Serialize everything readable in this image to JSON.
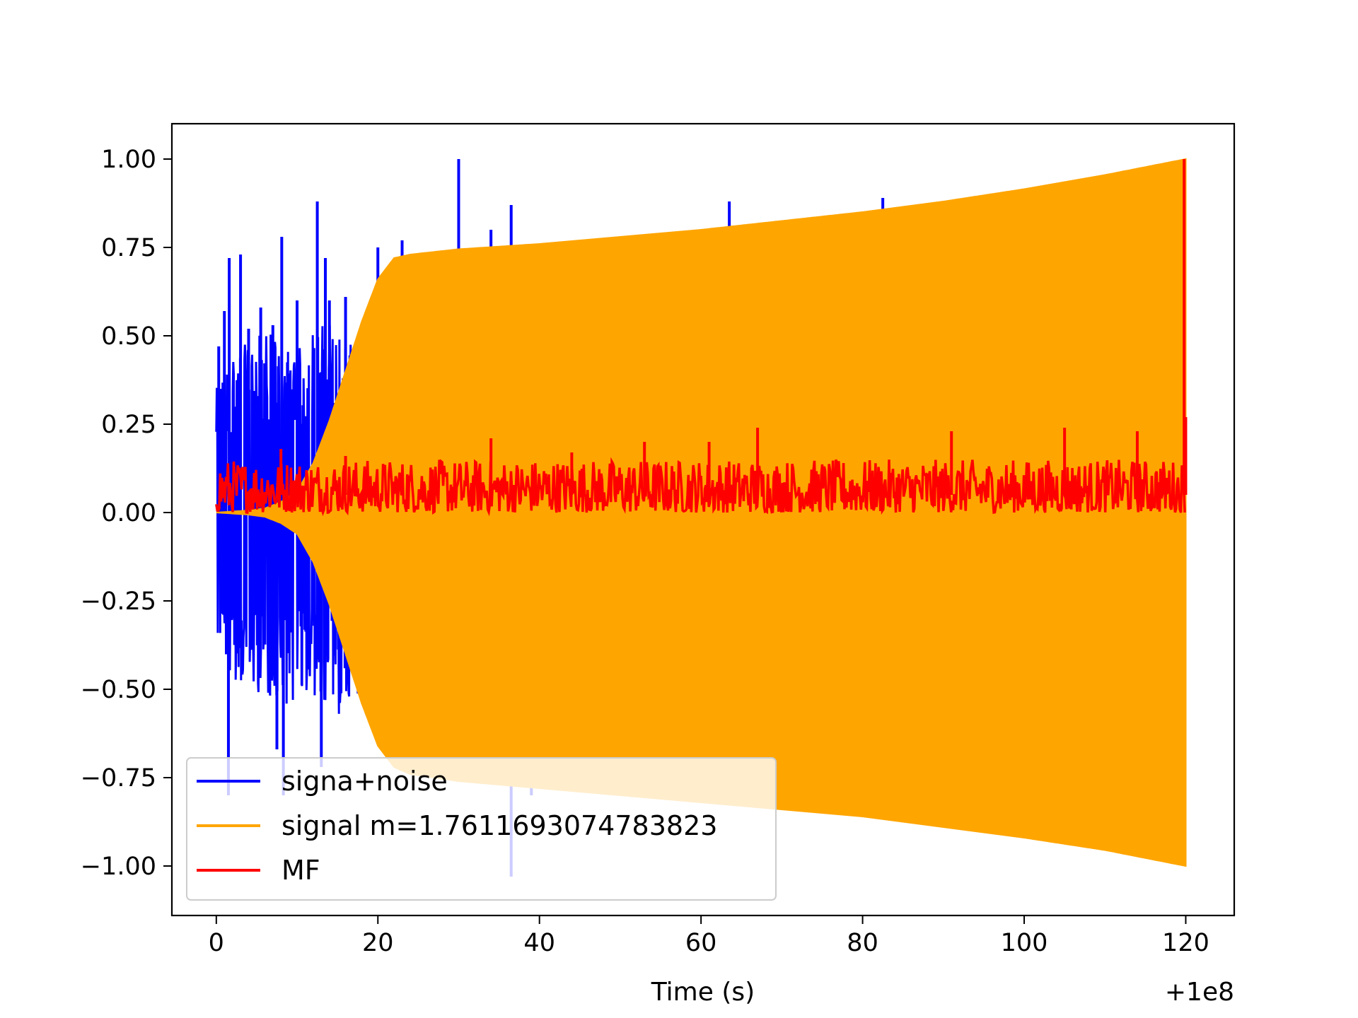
{
  "chart_data": {
    "type": "line",
    "title": "",
    "xlabel": "Time (s)",
    "ylabel": "",
    "x_offset_label": "+1e8",
    "xlim": [
      -5.5,
      126
    ],
    "ylim": [
      -1.14,
      1.1
    ],
    "xticks": [
      0,
      20,
      40,
      60,
      80,
      100,
      120
    ],
    "xtick_labels": [
      "0",
      "20",
      "40",
      "60",
      "80",
      "100",
      "120"
    ],
    "yticks": [
      1.0,
      0.75,
      0.5,
      0.25,
      0.0,
      -0.25,
      -0.5,
      -0.75,
      -1.0
    ],
    "ytick_labels": [
      "1.00",
      "0.75",
      "0.50",
      "0.25",
      "0.00",
      "−0.25",
      "−0.50",
      "−0.75",
      "−1.00"
    ],
    "grid": false,
    "legend_position": "lower-left",
    "series": [
      {
        "name": "signa+noise",
        "color": "#0000ff",
        "envelope_x": [
          0,
          2,
          4,
          6,
          8,
          10,
          12,
          14,
          16,
          18,
          20
        ],
        "envelope_upper": [
          0.35,
          0.46,
          0.48,
          0.52,
          0.48,
          0.46,
          0.52,
          0.55,
          0.5,
          0.42,
          0.3
        ],
        "envelope_lower": [
          -0.35,
          -0.48,
          -0.5,
          -0.52,
          -0.55,
          -0.53,
          -0.52,
          -0.6,
          -0.56,
          -0.5,
          -0.4
        ],
        "spikes": [
          {
            "x": 0.3,
            "y": 0.47
          },
          {
            "x": 1.0,
            "y": 0.57
          },
          {
            "x": 1.5,
            "y": -0.8
          },
          {
            "x": 1.6,
            "y": 0.72
          },
          {
            "x": 3.0,
            "y": 0.73
          },
          {
            "x": 4.0,
            "y": 0.52
          },
          {
            "x": 5.5,
            "y": 0.58
          },
          {
            "x": 7.0,
            "y": 0.53
          },
          {
            "x": 7.5,
            "y": -0.67
          },
          {
            "x": 8.1,
            "y": 0.78
          },
          {
            "x": 8.3,
            "y": -0.8
          },
          {
            "x": 10.0,
            "y": 0.6
          },
          {
            "x": 12.5,
            "y": 0.88
          },
          {
            "x": 13.0,
            "y": -0.72
          },
          {
            "x": 13.5,
            "y": 0.72
          },
          {
            "x": 14.0,
            "y": 0.6
          },
          {
            "x": 16.0,
            "y": 0.61
          },
          {
            "x": 20.0,
            "y": 0.75
          },
          {
            "x": 23.0,
            "y": 0.77
          },
          {
            "x": 30.0,
            "y": 1.0
          },
          {
            "x": 34.0,
            "y": 0.8
          },
          {
            "x": 36.5,
            "y": 0.87
          },
          {
            "x": 36.5,
            "y": -1.03
          },
          {
            "x": 39.0,
            "y": -0.8
          },
          {
            "x": 63.5,
            "y": 0.88
          },
          {
            "x": 82.5,
            "y": 0.89
          }
        ]
      },
      {
        "name": "signal m=1.7611693074783823",
        "color": "#ffa500",
        "envelope_x": [
          0,
          2,
          4,
          6,
          8,
          10,
          12,
          14,
          16,
          18,
          20,
          22,
          24,
          30,
          40,
          50,
          60,
          70,
          80,
          90,
          100,
          110,
          120
        ],
        "envelope_upper": [
          0.0,
          0.003,
          0.006,
          0.012,
          0.03,
          0.06,
          0.14,
          0.26,
          0.4,
          0.54,
          0.66,
          0.72,
          0.73,
          0.745,
          0.76,
          0.78,
          0.8,
          0.825,
          0.85,
          0.88,
          0.915,
          0.955,
          1.0
        ],
        "envelope_lower": [
          0.0,
          -0.003,
          -0.006,
          -0.012,
          -0.03,
          -0.06,
          -0.14,
          -0.26,
          -0.4,
          -0.54,
          -0.66,
          -0.72,
          -0.74,
          -0.76,
          -0.78,
          -0.8,
          -0.82,
          -0.84,
          -0.86,
          -0.89,
          -0.92,
          -0.955,
          -1.0
        ]
      },
      {
        "name": "MF",
        "color": "#ff0000",
        "baseline": 0.05,
        "noise_range": [
          0.0,
          0.15
        ],
        "spikes": [
          {
            "x": 8,
            "y": 0.18
          },
          {
            "x": 16,
            "y": 0.16
          },
          {
            "x": 34,
            "y": 0.21
          },
          {
            "x": 44,
            "y": 0.17
          },
          {
            "x": 53,
            "y": 0.2
          },
          {
            "x": 61,
            "y": 0.2
          },
          {
            "x": 67,
            "y": 0.24
          },
          {
            "x": 91,
            "y": 0.23
          },
          {
            "x": 105,
            "y": 0.24
          },
          {
            "x": 114,
            "y": 0.23
          },
          {
            "x": 119.8,
            "y": 1.0
          },
          {
            "x": 120.0,
            "y": 0.27
          }
        ]
      }
    ]
  }
}
